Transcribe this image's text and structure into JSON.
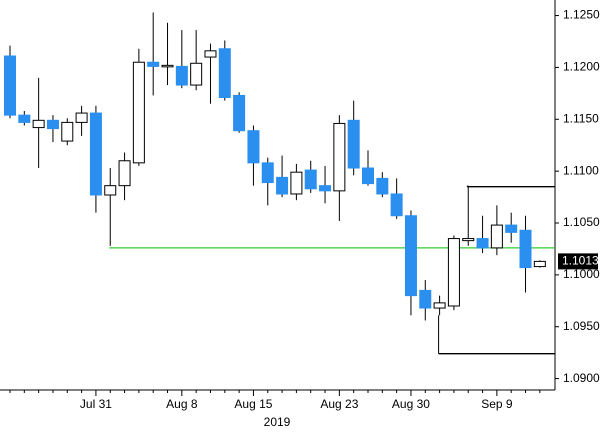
{
  "chart_data": {
    "type": "candlestick",
    "categories": [
      null,
      null,
      null,
      null,
      null,
      null,
      "Jul 31",
      null,
      null,
      null,
      null,
      null,
      "Aug 8",
      null,
      null,
      null,
      null,
      "Aug 15",
      null,
      null,
      null,
      null,
      null,
      "Aug 23",
      null,
      null,
      null,
      null,
      "Aug 30",
      null,
      null,
      null,
      null,
      null,
      "Sep 9",
      null,
      null,
      null
    ],
    "xlabel": "2019",
    "series": [
      {
        "up_color": "#ffffff",
        "down_color": "#2b8ff0",
        "open": [
          1.1211,
          1.1154,
          1.1142,
          1.1149,
          1.1129,
          1.1147,
          1.1156,
          1.1077,
          1.1086,
          1.1108,
          1.1205,
          1.1201,
          1.1201,
          1.1183,
          1.121,
          1.1218,
          1.1173,
          1.1139,
          1.1108,
          1.1094,
          1.1078,
          1.1101,
          1.1086,
          1.1081,
          1.1149,
          1.1103,
          1.1093,
          1.1078,
          1.1057,
          1.0985,
          1.0968,
          1.097,
          1.1033,
          1.1035,
          1.1026,
          1.1048,
          1.1043,
          1.1008
        ],
        "high": [
          1.1221,
          1.1158,
          1.119,
          1.1154,
          1.1151,
          1.1163,
          1.1163,
          1.1103,
          1.1118,
          1.1218,
          1.1253,
          1.1243,
          1.1236,
          1.1236,
          1.1223,
          1.1226,
          1.1176,
          1.1144,
          1.1113,
          1.1115,
          1.1107,
          1.111,
          1.1105,
          1.1154,
          1.1168,
          1.112,
          1.1099,
          1.1093,
          1.1062,
          1.0995,
          1.098,
          1.1038,
          1.1086,
          1.1057,
          1.1067,
          1.106,
          1.1057,
          1.1014
        ],
        "low": [
          1.1151,
          1.1144,
          1.1103,
          1.1128,
          1.1125,
          1.1134,
          1.106,
          1.1028,
          1.1072,
          1.1105,
          1.1173,
          1.1183,
          1.118,
          1.1178,
          1.1165,
          1.1168,
          1.1137,
          1.1086,
          1.1067,
          1.1075,
          1.1072,
          1.1079,
          1.1069,
          1.1052,
          1.1096,
          1.1086,
          1.1075,
          1.1054,
          1.0961,
          1.0956,
          1.0961,
          1.0966,
          1.1028,
          1.1021,
          1.1019,
          1.1031,
          1.0983,
          1.1007
        ],
        "close": [
          1.1154,
          1.1147,
          1.1149,
          1.1141,
          1.1147,
          1.1156,
          1.1077,
          1.1086,
          1.111,
          1.1205,
          1.1201,
          1.1202,
          1.1183,
          1.1204,
          1.1216,
          1.1171,
          1.1139,
          1.1108,
          1.1089,
          1.1078,
          1.1099,
          1.1083,
          1.1081,
          1.1146,
          1.1103,
          1.1088,
          1.1078,
          1.1057,
          1.098,
          1.0968,
          1.0973,
          1.1035,
          1.1035,
          1.1026,
          1.1048,
          1.1041,
          1.1007,
          1.1013
        ]
      }
    ],
    "last_price": 1.1013,
    "levels": [
      {
        "value": 1.1026,
        "color": "#33cc33"
      },
      {
        "value": 1.1085,
        "color": "#000000"
      },
      {
        "value": 1.0924,
        "color": "#000000"
      }
    ],
    "ylim": [
      1.0889,
      1.1265
    ],
    "yticks": [
      {
        "value": 1.09,
        "label": "1.0900"
      },
      {
        "value": 1.095,
        "label": "1.0950"
      },
      {
        "value": 1.1,
        "label": "1.1000"
      },
      {
        "value": 1.105,
        "label": "1.1050"
      },
      {
        "value": 1.11,
        "label": "1.1100"
      },
      {
        "value": 1.115,
        "label": "1.1150"
      },
      {
        "value": 1.12,
        "label": "1.1200"
      },
      {
        "value": 1.125,
        "label": "1.1250"
      }
    ]
  }
}
